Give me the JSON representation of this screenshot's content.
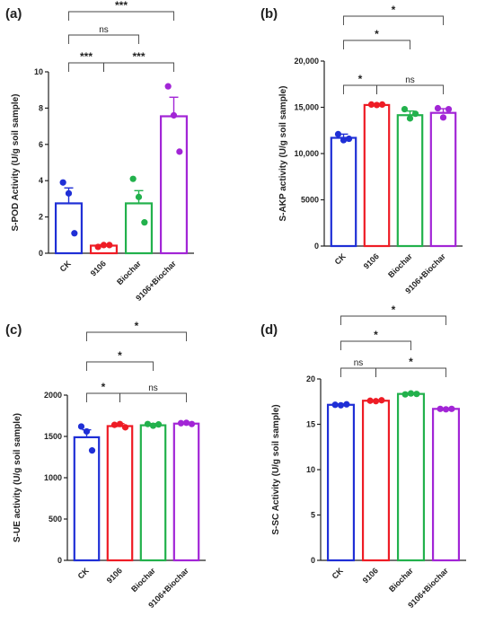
{
  "chart_data": [
    {
      "type": "bar",
      "panel_label": "(a)",
      "ylabel": "S-POD Activity (U/g soil sample)",
      "categories": [
        "CK",
        "9106",
        "Biochar",
        "9106+Biochar"
      ],
      "values": [
        2.75,
        0.42,
        2.75,
        7.55
      ],
      "errors": [
        0.85,
        0.05,
        0.7,
        1.05
      ],
      "points": [
        [
          3.9,
          3.3,
          1.1
        ],
        [
          0.35,
          0.45,
          0.45
        ],
        [
          4.1,
          3.1,
          1.7
        ],
        [
          9.2,
          7.6,
          5.6
        ]
      ],
      "colors": [
        "#1f2fd6",
        "#ee1c25",
        "#22b14c",
        "#a225d6"
      ],
      "ylim": [
        0,
        10
      ],
      "yticks": [
        0,
        2,
        4,
        6,
        8,
        10
      ],
      "ytick_labels": [
        "0",
        "2",
        "4",
        "6",
        "8",
        "10"
      ],
      "significance": [
        {
          "from": 0,
          "to": 3,
          "label": "***"
        },
        {
          "from": 0,
          "to": 2,
          "label": "ns"
        },
        {
          "from": 0,
          "to": 1,
          "label": "***"
        },
        {
          "from": 1,
          "to": 3,
          "label": "***"
        }
      ]
    },
    {
      "type": "bar",
      "panel_label": "(b)",
      "ylabel": "S-AKP activity (U/g soil sample)",
      "categories": [
        "CK",
        "9106",
        "Biochar",
        "9106+Biochar"
      ],
      "values": [
        11700,
        15250,
        14150,
        14400
      ],
      "errors": [
        400,
        80,
        450,
        450
      ],
      "points": [
        [
          12100,
          11450,
          11600
        ],
        [
          15300,
          15250,
          15300
        ],
        [
          14800,
          13800,
          14300
        ],
        [
          14900,
          13900,
          14800
        ]
      ],
      "colors": [
        "#1f2fd6",
        "#ee1c25",
        "#22b14c",
        "#a225d6"
      ],
      "ylim": [
        0,
        20000
      ],
      "yticks": [
        0,
        5000,
        10000,
        15000,
        20000
      ],
      "ytick_labels": [
        "0",
        "5000",
        "10,000",
        "15,000",
        "20,000"
      ],
      "significance": [
        {
          "from": 0,
          "to": 3,
          "label": "*"
        },
        {
          "from": 0,
          "to": 2,
          "label": "*"
        },
        {
          "from": 0,
          "to": 1,
          "label": "*"
        },
        {
          "from": 1,
          "to": 3,
          "label": "ns"
        }
      ]
    },
    {
      "type": "bar",
      "panel_label": "(c)",
      "ylabel": "S-UE activity (U/g soil sample)",
      "categories": [
        "CK",
        "9106",
        "Biochar",
        "9106+Biochar"
      ],
      "values": [
        1490,
        1625,
        1635,
        1655
      ],
      "errors": [
        90,
        30,
        20,
        10
      ],
      "points": [
        [
          1620,
          1560,
          1330
        ],
        [
          1640,
          1650,
          1610
        ],
        [
          1650,
          1630,
          1645
        ],
        [
          1660,
          1665,
          1650
        ]
      ],
      "colors": [
        "#1f2fd6",
        "#ee1c25",
        "#22b14c",
        "#a225d6"
      ],
      "ylim": [
        0,
        2000
      ],
      "yticks": [
        0,
        500,
        1000,
        1500,
        2000
      ],
      "ytick_labels": [
        "0",
        "500",
        "1000",
        "1500",
        "2000"
      ],
      "significance": [
        {
          "from": 0,
          "to": 3,
          "label": "*"
        },
        {
          "from": 0,
          "to": 2,
          "label": "*"
        },
        {
          "from": 0,
          "to": 1,
          "label": "*"
        },
        {
          "from": 1,
          "to": 3,
          "label": "ns"
        }
      ]
    },
    {
      "type": "bar",
      "panel_label": "(d)",
      "ylabel": "S-SC Activity (U/g soil sample)",
      "categories": [
        "CK",
        "9106",
        "Biochar",
        "9106+Biochar"
      ],
      "values": [
        17.15,
        17.6,
        18.35,
        16.7
      ],
      "errors": [
        0.08,
        0.08,
        0.1,
        0.08
      ],
      "points": [
        [
          17.15,
          17.1,
          17.2
        ],
        [
          17.6,
          17.55,
          17.65
        ],
        [
          18.3,
          18.4,
          18.35
        ],
        [
          16.7,
          16.65,
          16.7
        ]
      ],
      "colors": [
        "#1f2fd6",
        "#ee1c25",
        "#22b14c",
        "#a225d6"
      ],
      "ylim": [
        0,
        20
      ],
      "yticks": [
        0,
        5,
        10,
        15,
        20
      ],
      "ytick_labels": [
        "0",
        "5",
        "10",
        "15",
        "20"
      ],
      "significance": [
        {
          "from": 0,
          "to": 3,
          "label": "*"
        },
        {
          "from": 0,
          "to": 2,
          "label": "*"
        },
        {
          "from": 0,
          "to": 1,
          "label": "ns"
        },
        {
          "from": 1,
          "to": 3,
          "label": "*"
        }
      ]
    }
  ]
}
